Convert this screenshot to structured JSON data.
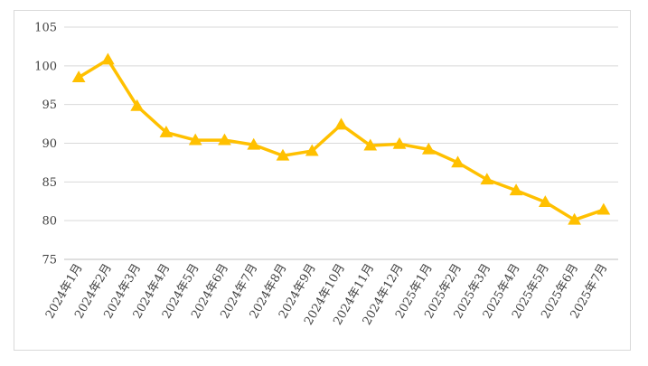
{
  "chart_data": {
    "type": "line",
    "title": "",
    "xlabel": "",
    "ylabel": "",
    "ylim": [
      75,
      105
    ],
    "yticks": [
      75,
      80,
      85,
      90,
      95,
      100,
      105
    ],
    "grid": true,
    "legend": "none",
    "categories": [
      "2024年1月",
      "2024年2月",
      "2024年3月",
      "2024年4月",
      "2024年5月",
      "2024年6月",
      "2024年7月",
      "2024年8月",
      "2024年9月",
      "2024年10月",
      "2024年11月",
      "2024年12月",
      "2025年1月",
      "2025年2月",
      "2025年3月",
      "2025年4月",
      "2025年5月",
      "2025年6月",
      "2025年7月"
    ],
    "series": [
      {
        "color": "#ffc000",
        "marker": "triangle",
        "values": [
          98.5,
          100.8,
          94.8,
          91.4,
          90.4,
          90.4,
          89.8,
          88.4,
          89.0,
          92.4,
          89.7,
          89.9,
          89.2,
          87.5,
          85.3,
          83.9,
          82.4,
          80.1,
          81.4
        ]
      }
    ]
  }
}
